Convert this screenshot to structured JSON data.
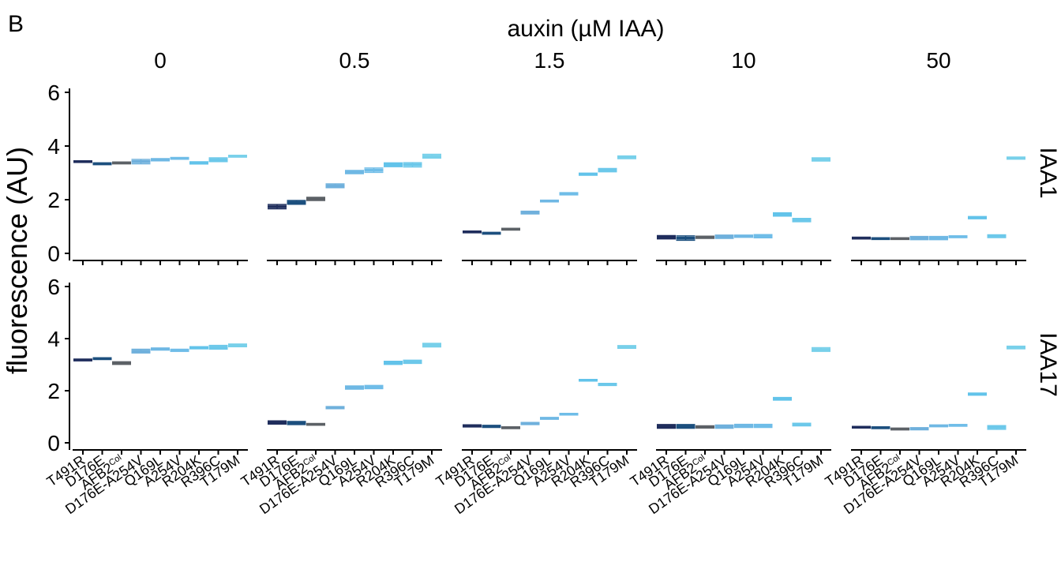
{
  "panel_label": "B",
  "chart_data": {
    "type": "scatter",
    "panel_label": "B",
    "column_title": "auxin (µM IAA)",
    "ylabel": "fluorescence (AU)",
    "ylim": [
      0,
      6
    ],
    "yticks": [
      0,
      2,
      4,
      6
    ],
    "facet_columns": [
      "0",
      "0.5",
      "1.5",
      "10",
      "50"
    ],
    "facet_rows": [
      "IAA1",
      "IAA17"
    ],
    "categories": [
      {
        "main": "T491R",
        "sup": ""
      },
      {
        "main": "D176E",
        "sup": ""
      },
      {
        "main": "AFB2",
        "sup": "Col"
      },
      {
        "main": "D176E-A254V",
        "sup": ""
      },
      {
        "main": "Q169L",
        "sup": ""
      },
      {
        "main": "A254V",
        "sup": ""
      },
      {
        "main": "R204K",
        "sup": ""
      },
      {
        "main": "R396C",
        "sup": ""
      },
      {
        "main": "T179M",
        "sup": ""
      }
    ],
    "category_colors": [
      "#1f2d5c",
      "#1c4f7e",
      "#5c6166",
      "#6fb0dc",
      "#6fb8e4",
      "#6fbde8",
      "#62c3ea",
      "#6cc8ea",
      "#78d0ea"
    ],
    "grid": false,
    "legend": "none",
    "values": {
      "IAA1": [
        [
          3.42,
          3.34,
          3.37,
          3.42,
          3.49,
          3.54,
          3.37,
          3.49,
          3.62
        ],
        [
          1.74,
          1.9,
          2.03,
          2.52,
          3.03,
          3.1,
          3.3,
          3.3,
          3.62
        ],
        [
          0.8,
          0.75,
          0.9,
          1.52,
          1.95,
          2.22,
          2.95,
          3.1,
          3.58
        ],
        [
          0.6,
          0.57,
          0.6,
          0.62,
          0.64,
          0.64,
          1.45,
          1.24,
          3.5
        ],
        [
          0.57,
          0.55,
          0.55,
          0.57,
          0.57,
          0.62,
          1.33,
          0.64,
          3.55
        ]
      ],
      "IAA17": [
        [
          3.18,
          3.23,
          3.06,
          3.52,
          3.6,
          3.55,
          3.65,
          3.67,
          3.74
        ],
        [
          0.78,
          0.76,
          0.71,
          1.35,
          2.12,
          2.14,
          3.07,
          3.11,
          3.75
        ],
        [
          0.65,
          0.63,
          0.58,
          0.74,
          0.94,
          1.1,
          2.4,
          2.24,
          3.68
        ],
        [
          0.63,
          0.63,
          0.61,
          0.62,
          0.65,
          0.65,
          1.69,
          0.7,
          3.58
        ],
        [
          0.6,
          0.58,
          0.53,
          0.54,
          0.65,
          0.67,
          1.87,
          0.59,
          3.66
        ]
      ]
    },
    "errors": {
      "IAA1": [
        [
          0.03,
          0.03,
          0.03,
          0.08,
          0.04,
          0.03,
          0.04,
          0.07,
          0.03
        ],
        [
          0.08,
          0.07,
          0.06,
          0.07,
          0.06,
          0.08,
          0.07,
          0.08,
          0.07
        ],
        [
          0.03,
          0.03,
          0.03,
          0.05,
          0.03,
          0.04,
          0.04,
          0.06,
          0.05
        ],
        [
          0.06,
          0.08,
          0.04,
          0.06,
          0.04,
          0.06,
          0.06,
          0.06,
          0.06
        ],
        [
          0.03,
          0.03,
          0.03,
          0.06,
          0.06,
          0.03,
          0.04,
          0.05,
          0.04
        ]
      ],
      "IAA17": [
        [
          0.03,
          0.03,
          0.05,
          0.07,
          0.04,
          0.04,
          0.04,
          0.07,
          0.05
        ],
        [
          0.06,
          0.06,
          0.03,
          0.04,
          0.06,
          0.06,
          0.06,
          0.06,
          0.07
        ],
        [
          0.04,
          0.04,
          0.03,
          0.04,
          0.03,
          0.03,
          0.03,
          0.04,
          0.05
        ],
        [
          0.07,
          0.07,
          0.04,
          0.06,
          0.06,
          0.06,
          0.05,
          0.05,
          0.07
        ],
        [
          0.03,
          0.03,
          0.03,
          0.04,
          0.03,
          0.03,
          0.04,
          0.07,
          0.05
        ]
      ]
    }
  }
}
